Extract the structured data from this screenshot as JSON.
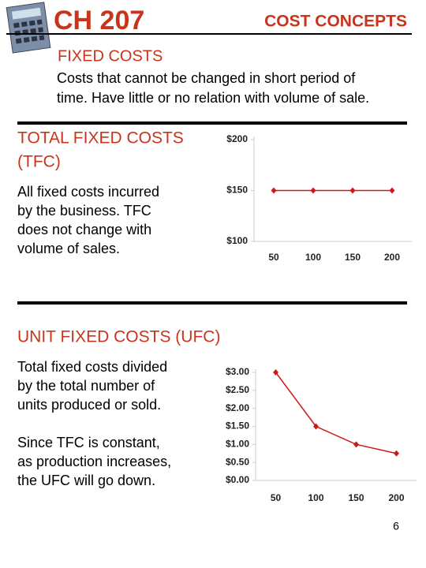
{
  "header": {
    "chapter": "CH 207",
    "title": "COST CONCEPTS"
  },
  "intro": {
    "heading": "FIXED COSTS",
    "text_lines": [
      "Costs that cannot be changed in short period of",
      "time.  Have little or no relation with volume of sale."
    ]
  },
  "sections": [
    {
      "heading_lines": [
        "TOTAL FIXED COSTS",
        "(TFC)"
      ],
      "paragraphs": [
        [
          "All fixed costs incurred",
          "by the business.  TFC",
          "does not change with",
          "volume of sales."
        ]
      ]
    },
    {
      "heading_lines": [
        "UNIT FIXED COSTS (UFC)"
      ],
      "paragraphs": [
        [
          "Total fixed costs divided",
          "by the total number of",
          "units produced or sold."
        ],
        [
          "Since TFC is constant,",
          "as production increases,",
          "the UFC will go down."
        ]
      ]
    }
  ],
  "page_number": "6",
  "chart_data": [
    {
      "type": "line",
      "categories": [
        "50",
        "100",
        "150",
        "200"
      ],
      "values": [
        150,
        150,
        150,
        150
      ],
      "color": "#d01818",
      "ylim": [
        100,
        200
      ],
      "yticks": [
        {
          "value": 100,
          "label": "$100"
        },
        {
          "value": 150,
          "label": "$150"
        },
        {
          "value": 200,
          "label": "$200"
        }
      ]
    },
    {
      "type": "line",
      "categories": [
        "50",
        "100",
        "150",
        "200"
      ],
      "values": [
        3.0,
        1.5,
        1.0,
        0.75
      ],
      "color": "#d01818",
      "ylim": [
        0,
        3
      ],
      "yticks": [
        {
          "value": 0,
          "label": "$0.00"
        },
        {
          "value": 0.5,
          "label": "$0.50"
        },
        {
          "value": 1,
          "label": "$1.00"
        },
        {
          "value": 1.5,
          "label": "$1.50"
        },
        {
          "value": 2,
          "label": "$2.00"
        },
        {
          "value": 2.5,
          "label": "$2.50"
        },
        {
          "value": 3,
          "label": "$3.00"
        }
      ]
    }
  ]
}
